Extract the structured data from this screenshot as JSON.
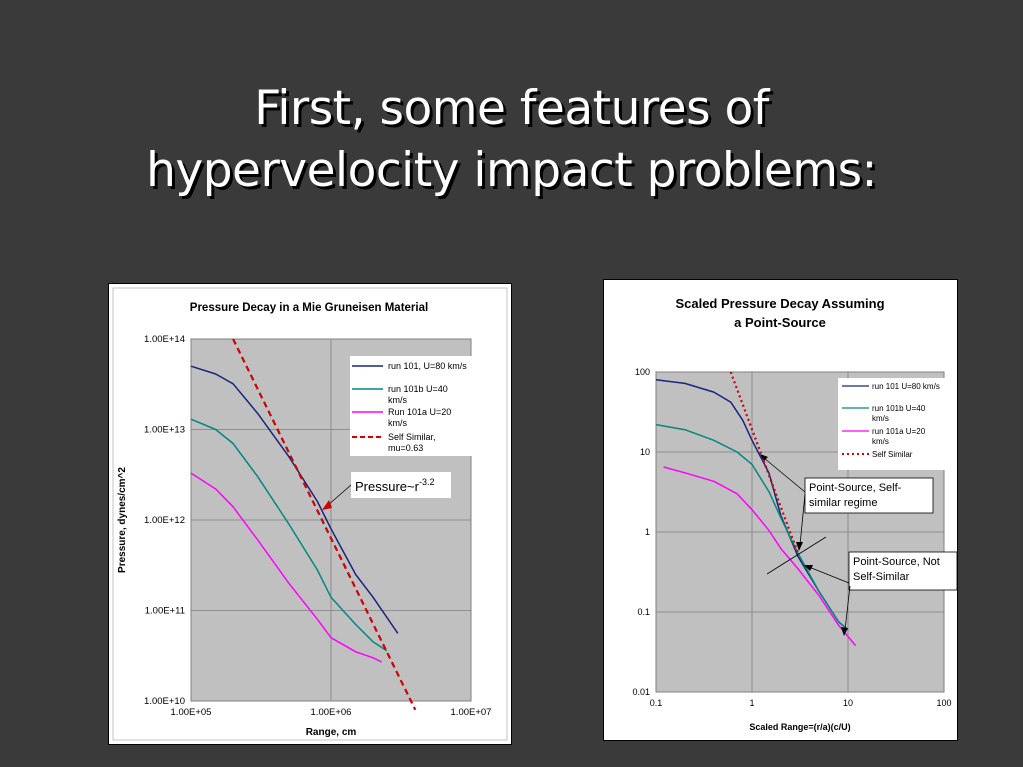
{
  "slide": {
    "title_line1": "First, some features of",
    "title_line2": "hypervelocity impact problems:"
  },
  "colors": {
    "background": "#3a3a3a",
    "plot_area": "#c0c0c0",
    "run101": "#1a237e",
    "run101b": "#00897b",
    "run101a": "#ff00ff",
    "self_similar": "#cc0000"
  },
  "chart_data": [
    {
      "type": "line",
      "title": "Pressure Decay in a Mie Gruneisen Material",
      "xlabel": "Range, cm",
      "ylabel": "Pressure, dynes/cm^2",
      "x_scale": "log",
      "y_scale": "log",
      "xlim": [
        100000,
        10000000
      ],
      "ylim": [
        10000000000,
        100000000000000
      ],
      "x_ticks": [
        "1.00E+05",
        "1.00E+06",
        "1.00E+07"
      ],
      "y_ticks": [
        "1.00E+14",
        "1.00E+13",
        "1.00E+12",
        "1.00E+11",
        "1.00E+10"
      ],
      "grid": true,
      "legend_position": "top-right",
      "series": [
        {
          "name": "run 101, U=80 km/s",
          "style": "solid",
          "x": [
            100000,
            150000,
            200000,
            300000,
            500000,
            800000,
            1000000,
            1500000,
            2000000,
            3000000
          ],
          "y": [
            50000000000000,
            41000000000000,
            32000000000000,
            15000000000000,
            5000000000000,
            1600000000000,
            800000000000,
            250000000000,
            140000000000,
            56000000000
          ]
        },
        {
          "name": "run 101b U=40 km/s",
          "style": "solid",
          "x": [
            100000,
            150000,
            200000,
            300000,
            500000,
            800000,
            1000000,
            1500000,
            2000000,
            2500000
          ],
          "y": [
            13000000000000,
            10000000000000,
            7000000000000,
            3000000000000,
            900000000000,
            280000000000,
            140000000000,
            70000000000,
            45000000000,
            36000000000
          ]
        },
        {
          "name": "Run 101a U=20 km/s",
          "style": "solid",
          "x": [
            100000,
            150000,
            200000,
            300000,
            500000,
            800000,
            1000000,
            1500000,
            2000000,
            2300000
          ],
          "y": [
            3300000000000,
            2200000000000,
            1400000000000,
            600000000000,
            200000000000,
            80000000000,
            50000000000,
            35000000000,
            30000000000,
            27000000000
          ]
        },
        {
          "name": "Self Similar, mu=0.63",
          "style": "dashed",
          "x": [
            200000,
            4000000
          ],
          "y": [
            100000000000000,
            8000000000
          ]
        }
      ],
      "annotations": [
        {
          "text": "Pressure~r",
          "superscript": "-3.2"
        }
      ]
    },
    {
      "type": "line",
      "title_line1": "Scaled Pressure Decay Assuming",
      "title_line2": "a Point-Source",
      "xlabel": "Scaled Range=(r/a)(c/U)",
      "ylabel": "",
      "x_scale": "log",
      "y_scale": "log",
      "xlim": [
        0.1,
        100
      ],
      "ylim": [
        0.01,
        100
      ],
      "x_ticks": [
        "0.1",
        "1",
        "10",
        "100"
      ],
      "y_ticks": [
        "100",
        "10",
        "1",
        "0.1",
        "0.01"
      ],
      "grid": true,
      "legend_position": "top-right",
      "series": [
        {
          "name": "run 101 U=80 km/s",
          "style": "solid",
          "x": [
            0.1,
            0.2,
            0.4,
            0.6,
            0.8,
            1.0,
            1.5,
            2.0,
            3.0,
            5.0,
            8.0,
            10.0
          ],
          "y": [
            80,
            72,
            56,
            42,
            25,
            14,
            5.5,
            1.6,
            0.5,
            0.18,
            0.075,
            0.06
          ]
        },
        {
          "name": "run 101b U=40 km/s",
          "style": "solid",
          "x": [
            0.1,
            0.2,
            0.4,
            0.7,
            1.0,
            1.5,
            2.0,
            3.0,
            5.0,
            8.0,
            10.0
          ],
          "y": [
            22,
            19,
            14,
            10,
            7,
            3.2,
            1.5,
            0.55,
            0.18,
            0.075,
            0.06
          ]
        },
        {
          "name": "run 101a U=20 km/s",
          "style": "solid",
          "x": [
            0.12,
            0.2,
            0.4,
            0.7,
            1.0,
            1.5,
            2.0,
            3.0,
            5.0,
            8.0,
            12.0
          ],
          "y": [
            6.5,
            5.5,
            4.3,
            3.0,
            1.9,
            1.05,
            0.62,
            0.35,
            0.16,
            0.068,
            0.038
          ]
        },
        {
          "name": "Self Similar",
          "style": "dotted",
          "x": [
            0.6,
            3.0
          ],
          "y": [
            100,
            0.55
          ]
        }
      ],
      "annotations": [
        {
          "text_line1": "Point-Source, Self-",
          "text_line2": "similar regime"
        },
        {
          "text_line1": "Point-Source, Not",
          "text_line2": "Self-Similar"
        }
      ]
    }
  ]
}
